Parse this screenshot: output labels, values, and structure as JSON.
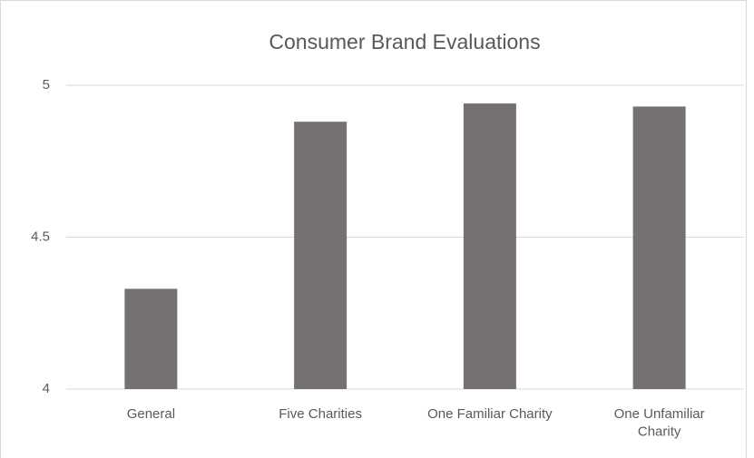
{
  "chart_data": {
    "type": "bar",
    "title": "Consumer Brand Evaluations",
    "categories": [
      "General",
      "Five Charities",
      "One Familiar Charity",
      "One Unfamiliar Charity"
    ],
    "values": [
      4.33,
      4.88,
      4.94,
      4.93
    ],
    "color": "#767171",
    "ylim": [
      4,
      5
    ],
    "yticks": [
      4,
      4.5,
      5
    ],
    "grid": true
  }
}
